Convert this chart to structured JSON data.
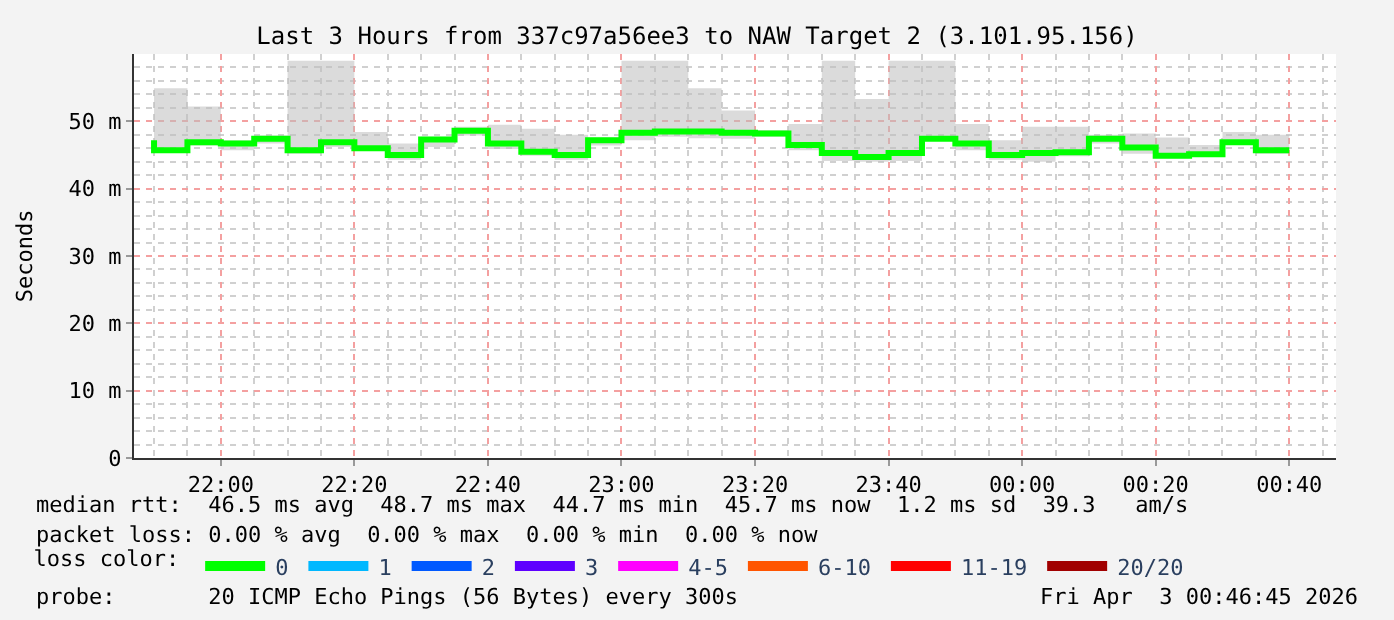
{
  "chart_data": {
    "type": "step",
    "title": "Last 3 Hours from 337c97a56ee3 to NAW Target 2 (3.101.95.156)",
    "ylabel": "Seconds",
    "legend_title": "loss color:",
    "x": [
      "2026-04-02T21:50",
      "2026-04-02T21:55",
      "2026-04-02T22:00",
      "2026-04-02T22:05",
      "2026-04-02T22:10",
      "2026-04-02T22:15",
      "2026-04-02T22:20",
      "2026-04-02T22:25",
      "2026-04-02T22:30",
      "2026-04-02T22:35",
      "2026-04-02T22:40",
      "2026-04-02T22:45",
      "2026-04-02T22:50",
      "2026-04-02T22:55",
      "2026-04-02T23:00",
      "2026-04-02T23:05",
      "2026-04-02T23:10",
      "2026-04-02T23:15",
      "2026-04-02T23:20",
      "2026-04-02T23:25",
      "2026-04-02T23:30",
      "2026-04-02T23:35",
      "2026-04-02T23:40",
      "2026-04-02T23:45",
      "2026-04-02T23:50",
      "2026-04-02T23:55",
      "2026-04-03T00:00",
      "2026-04-03T00:05",
      "2026-04-03T00:10",
      "2026-04-03T00:15",
      "2026-04-03T00:20",
      "2026-04-03T00:25",
      "2026-04-03T00:30",
      "2026-04-03T00:35",
      "2026-04-03T00:40"
    ],
    "series": [
      {
        "name": "0",
        "color": "#00ff00",
        "values": [
          47.2,
          45.7,
          46.9,
          46.7,
          47.4,
          45.7,
          46.9,
          46.0,
          45.0,
          47.3,
          48.6,
          46.7,
          45.5,
          45.0,
          47.2,
          48.3,
          48.5,
          48.5,
          48.3,
          48.2,
          46.5,
          45.3,
          44.7,
          45.3,
          47.4,
          46.7,
          45.0,
          45.3,
          45.4,
          47.4,
          46.1,
          44.9,
          45.1,
          46.9,
          45.7
        ],
        "lower": [
          46.2,
          45.4,
          46.4,
          45.7,
          46.7,
          45.2,
          46.2,
          45.7,
          44.3,
          46.2,
          47.9,
          45.9,
          44.9,
          44.3,
          46.4,
          47.2,
          47.7,
          47.5,
          47.4,
          47.7,
          45.7,
          44.1,
          44.0,
          44.1,
          47.7,
          45.7,
          44.3,
          44.0,
          44.8,
          46.7,
          45.2,
          44.5,
          44.8,
          47.2,
          45.2
        ],
        "upper": [
          48.0,
          54.9,
          52.2,
          47.2,
          47.9,
          59.0,
          59.0,
          48.4,
          46.7,
          47.7,
          49.2,
          49.5,
          48.9,
          48.0,
          47.6,
          59.0,
          59.0,
          54.9,
          51.6,
          48.7,
          49.6,
          59.0,
          53.3,
          59.0,
          59.0,
          49.6,
          47.2,
          49.2,
          49.2,
          48.0,
          48.2,
          47.6,
          46.5,
          48.4,
          48.0
        ]
      },
      {
        "name": "1",
        "color": "#00b8ff",
        "values": [
          null,
          null,
          null,
          null,
          null,
          null,
          null,
          null,
          null,
          null,
          null,
          null,
          null,
          null,
          null,
          null,
          null,
          null,
          null,
          null,
          null,
          null,
          null,
          null,
          null,
          null,
          null,
          null,
          null,
          null,
          null,
          null,
          null,
          null,
          null
        ]
      },
      {
        "name": "2",
        "color": "#0059ff",
        "values": [
          null,
          null,
          null,
          null,
          null,
          null,
          null,
          null,
          null,
          null,
          null,
          null,
          null,
          null,
          null,
          null,
          null,
          null,
          null,
          null,
          null,
          null,
          null,
          null,
          null,
          null,
          null,
          null,
          null,
          null,
          null,
          null,
          null,
          null,
          null
        ]
      },
      {
        "name": "3",
        "color": "#5e00ff",
        "values": [
          null,
          null,
          null,
          null,
          null,
          null,
          null,
          null,
          null,
          null,
          null,
          null,
          null,
          null,
          null,
          null,
          null,
          null,
          null,
          null,
          null,
          null,
          null,
          null,
          null,
          null,
          null,
          null,
          null,
          null,
          null,
          null,
          null,
          null,
          null
        ]
      },
      {
        "name": "4-5",
        "color": "#ff00ff",
        "values": [
          null,
          null,
          null,
          null,
          null,
          null,
          null,
          null,
          null,
          null,
          null,
          null,
          null,
          null,
          null,
          null,
          null,
          null,
          null,
          null,
          null,
          null,
          null,
          null,
          null,
          null,
          null,
          null,
          null,
          null,
          null,
          null,
          null,
          null,
          null
        ]
      },
      {
        "name": "6-10",
        "color": "#ff5500",
        "values": [
          null,
          null,
          null,
          null,
          null,
          null,
          null,
          null,
          null,
          null,
          null,
          null,
          null,
          null,
          null,
          null,
          null,
          null,
          null,
          null,
          null,
          null,
          null,
          null,
          null,
          null,
          null,
          null,
          null,
          null,
          null,
          null,
          null,
          null,
          null
        ]
      },
      {
        "name": "11-19",
        "color": "#ff0000",
        "values": [
          null,
          null,
          null,
          null,
          null,
          null,
          null,
          null,
          null,
          null,
          null,
          null,
          null,
          null,
          null,
          null,
          null,
          null,
          null,
          null,
          null,
          null,
          null,
          null,
          null,
          null,
          null,
          null,
          null,
          null,
          null,
          null,
          null,
          null,
          null
        ]
      },
      {
        "name": "20/20",
        "color": "#a10000",
        "values": [
          null,
          null,
          null,
          null,
          null,
          null,
          null,
          null,
          null,
          null,
          null,
          null,
          null,
          null,
          null,
          null,
          null,
          null,
          null,
          null,
          null,
          null,
          null,
          null,
          null,
          null,
          null,
          null,
          null,
          null,
          null,
          null,
          null,
          null,
          null
        ]
      }
    ],
    "xlim": [
      "2026-04-02T21:47",
      "2026-04-03T00:47"
    ],
    "xticks": [
      {
        "value": "2026-04-02T22:00",
        "label": "22:00"
      },
      {
        "value": "2026-04-02T22:20",
        "label": "22:20"
      },
      {
        "value": "2026-04-02T22:40",
        "label": "22:40"
      },
      {
        "value": "2026-04-02T23:00",
        "label": "23:00"
      },
      {
        "value": "2026-04-02T23:20",
        "label": "23:20"
      },
      {
        "value": "2026-04-02T23:40",
        "label": "23:40"
      },
      {
        "value": "2026-04-03T00:00",
        "label": "00:00"
      },
      {
        "value": "2026-04-03T00:20",
        "label": "00:20"
      },
      {
        "value": "2026-04-03T00:40",
        "label": "00:40"
      }
    ],
    "ylim": [
      0,
      60
    ],
    "yticks": [
      0,
      {
        "value": 10,
        "label": "10 m"
      },
      {
        "value": 20,
        "label": "20 m"
      },
      {
        "value": 30,
        "label": "30 m"
      },
      {
        "value": 40,
        "label": "40 m"
      },
      {
        "value": 50,
        "label": "50 m"
      }
    ],
    "grid": true,
    "legend": "bottom",
    "annotations": [
      "median rtt:  46.5 ms avg  48.7 ms max  44.7 ms min  45.7 ms now  1.2 ms sd  39.3   am/s",
      "packet loss: 0.00 % avg  0.00 % max  0.00 % min  0.00 % now",
      "probe:       20 ICMP Echo Pings (56 Bytes) every 300s",
      "Fri Apr  3 00:46:45 2026"
    ]
  }
}
